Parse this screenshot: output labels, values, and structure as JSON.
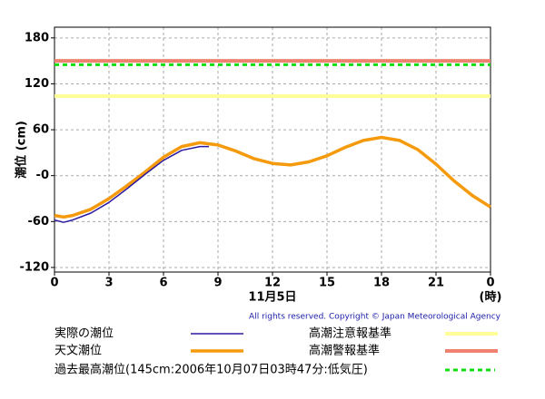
{
  "chart_data": {
    "type": "line",
    "ylabel": "潮位 (cm)",
    "xlabel": "11月5日",
    "xunit": "(時)",
    "copyright": "All rights reserved. Copyright © Japan Meteorological Agency",
    "xlim": [
      0,
      24
    ],
    "xticks": [
      0,
      3,
      6,
      9,
      12,
      15,
      18,
      21,
      {
        "value": 24,
        "label": "0"
      }
    ],
    "ylim": [
      -126,
      194
    ],
    "yticks": [
      180,
      120,
      60,
      {
        "value": 0,
        "label": "-0"
      },
      -60,
      -120
    ],
    "grid": true,
    "series": [
      {
        "name": "実際の潮位",
        "color": "#2b1aa0",
        "width": 1.5,
        "x": [
          0,
          0.5,
          1,
          2,
          3,
          4,
          5,
          6,
          7,
          8,
          8.5
        ],
        "values": [
          -58,
          -61,
          -58,
          -49,
          -35,
          -17,
          2,
          20,
          33,
          38,
          38
        ]
      },
      {
        "name": "天文潮位",
        "color": "#f59a0c",
        "width": 3.5,
        "x": [
          0,
          0.5,
          1,
          2,
          3,
          4,
          5,
          6,
          7,
          8,
          9,
          10,
          11,
          12,
          13,
          14,
          15,
          16,
          17,
          18,
          19,
          20,
          21,
          22,
          23,
          24
        ],
        "values": [
          -52,
          -54,
          -52,
          -44,
          -30,
          -13,
          5,
          24,
          38,
          43,
          40,
          32,
          22,
          16,
          14,
          18,
          26,
          37,
          46,
          50,
          46,
          34,
          15,
          -7,
          -26,
          -41
        ]
      }
    ],
    "reference_lines": [
      {
        "name": "高潮注意報基準",
        "value": 104,
        "color": "#ffff99",
        "dash": false
      },
      {
        "name": "高潮警報基準",
        "value": 150,
        "color": "#f08070",
        "dash": false
      },
      {
        "name": "過去最高潮位(145cm:2006年10月07日03時47分:低気圧)",
        "value": 145,
        "color": "#11dd11",
        "dash": true
      }
    ]
  }
}
